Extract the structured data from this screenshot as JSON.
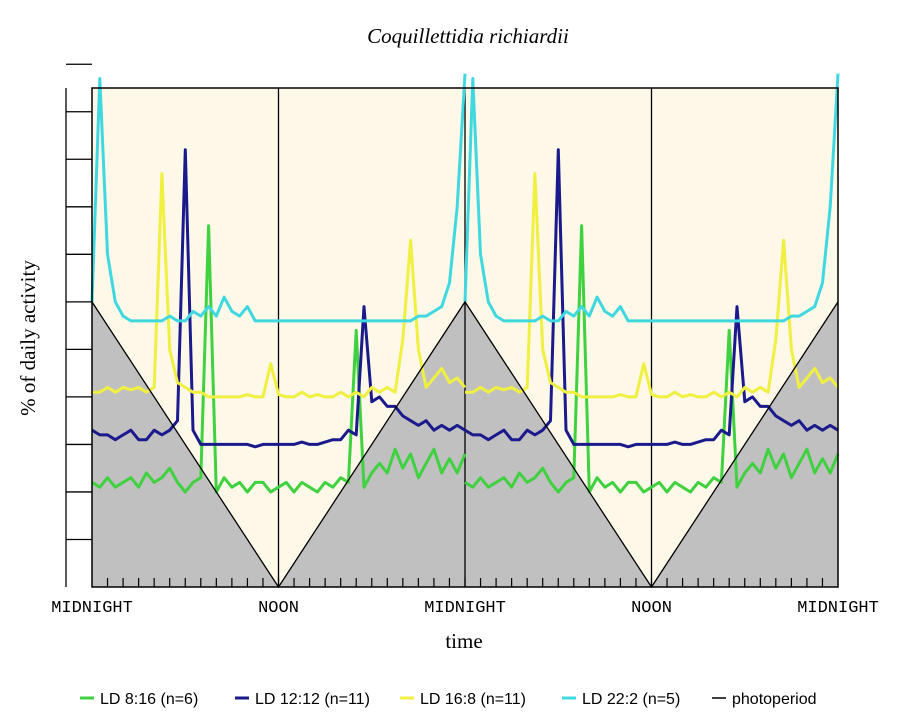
{
  "chart_data": {
    "type": "line",
    "title": "Coquillettidia richiardii",
    "xlabel": "time",
    "ylabel": "% of daily activity",
    "x_ticks": [
      "MIDNIGHT",
      "NOON",
      "MIDNIGHT",
      "NOON",
      "MIDNIGHT"
    ],
    "x_range_hours": [
      0,
      48
    ],
    "y_range": [
      0,
      10.5
    ],
    "y_tick_count": 11,
    "plot_background": "#fdf8e8",
    "dark_background": "#c0c0c0",
    "series": [
      {
        "name": "LD 8:16 (n=6)",
        "color": "#3fd13f",
        "x": [
          0,
          0.5,
          1,
          1.5,
          2,
          2.5,
          3,
          3.5,
          4,
          4.5,
          5,
          5.5,
          6,
          6.5,
          7,
          7.5,
          8,
          8.5,
          9,
          9.5,
          10,
          10.5,
          11,
          11.5,
          12,
          12.5,
          13,
          13.5,
          14,
          14.5,
          15,
          15.5,
          16,
          16.5,
          17,
          17.5,
          18,
          18.5,
          19,
          19.5,
          20,
          20.5,
          21,
          21.5,
          22,
          22.5,
          23,
          23.5,
          24
        ],
        "values": [
          2.2,
          2.1,
          2.3,
          2.1,
          2.2,
          2.3,
          2.1,
          2.4,
          2.2,
          2.3,
          2.5,
          2.2,
          2.0,
          2.2,
          2.3,
          7.6,
          2.0,
          2.3,
          2.1,
          2.2,
          2.0,
          2.2,
          2.2,
          2.0,
          2.1,
          2.2,
          2.0,
          2.2,
          2.1,
          2.0,
          2.2,
          2.1,
          2.3,
          2.2,
          5.4,
          2.1,
          2.4,
          2.6,
          2.4,
          2.9,
          2.5,
          2.8,
          2.3,
          2.6,
          2.9,
          2.4,
          2.7,
          2.4,
          2.8
        ]
      },
      {
        "name": "LD 12:12 (n=11)",
        "color": "#1a1a8c",
        "x": [
          0,
          0.5,
          1,
          1.5,
          2,
          2.5,
          3,
          3.5,
          4,
          4.5,
          5,
          5.5,
          6,
          6.5,
          7,
          7.5,
          8,
          8.5,
          9,
          9.5,
          10,
          10.5,
          11,
          11.5,
          12,
          12.5,
          13,
          13.5,
          14,
          14.5,
          15,
          15.5,
          16,
          16.5,
          17,
          17.5,
          18,
          18.5,
          19,
          19.5,
          20,
          20.5,
          21,
          21.5,
          22,
          22.5,
          23,
          23.5,
          24
        ],
        "values": [
          3.3,
          3.2,
          3.2,
          3.1,
          3.2,
          3.3,
          3.1,
          3.1,
          3.3,
          3.2,
          3.3,
          3.5,
          9.2,
          3.3,
          3.0,
          3.0,
          3.0,
          3.0,
          3.0,
          3.0,
          3.0,
          2.95,
          3.0,
          3.0,
          3.0,
          3.0,
          3.0,
          3.05,
          3.0,
          3.0,
          3.05,
          3.1,
          3.1,
          3.3,
          3.2,
          5.9,
          3.9,
          4.0,
          3.8,
          3.8,
          3.6,
          3.5,
          3.4,
          3.5,
          3.3,
          3.4,
          3.3,
          3.4,
          3.3
        ]
      },
      {
        "name": "LD 16:8 (n=11)",
        "color": "#f0f040",
        "x": [
          0,
          0.5,
          1,
          1.5,
          2,
          2.5,
          3,
          3.5,
          4,
          4.5,
          5,
          5.5,
          6,
          6.5,
          7,
          7.5,
          8,
          8.5,
          9,
          9.5,
          10,
          10.5,
          11,
          11.5,
          12,
          12.5,
          13,
          13.5,
          14,
          14.5,
          15,
          15.5,
          16,
          16.5,
          17,
          17.5,
          18,
          18.5,
          19,
          19.5,
          20,
          20.5,
          21,
          21.5,
          22,
          22.5,
          23,
          23.5,
          24
        ],
        "values": [
          4.1,
          4.1,
          4.2,
          4.1,
          4.2,
          4.15,
          4.2,
          4.1,
          4.2,
          8.7,
          5.0,
          4.3,
          4.2,
          4.1,
          4.1,
          4.0,
          4.0,
          4.0,
          4.0,
          4.0,
          4.05,
          4.0,
          4.0,
          4.7,
          4.05,
          4.0,
          4.0,
          4.1,
          4.0,
          4.05,
          4.0,
          4.0,
          4.1,
          4.0,
          4.1,
          4.0,
          4.2,
          4.1,
          4.2,
          4.1,
          5.2,
          7.3,
          5.0,
          4.2,
          4.4,
          4.6,
          4.3,
          4.4,
          4.2
        ]
      },
      {
        "name": "LD 22:2 (n=5)",
        "color": "#40d8e0",
        "x": [
          0,
          0.5,
          1,
          1.5,
          2,
          2.5,
          3,
          3.5,
          4,
          4.5,
          5,
          5.5,
          6,
          6.5,
          7,
          7.5,
          8,
          8.5,
          9,
          9.5,
          10,
          10.5,
          11,
          11.5,
          12,
          12.5,
          13,
          13.5,
          14,
          14.5,
          15,
          15.5,
          16,
          16.5,
          17,
          17.5,
          18,
          18.5,
          19,
          19.5,
          20,
          20.5,
          21,
          21.5,
          22,
          22.5,
          23,
          23.5,
          24
        ],
        "values": [
          6.0,
          10.7,
          7.0,
          6.0,
          5.7,
          5.6,
          5.6,
          5.6,
          5.6,
          5.6,
          5.7,
          5.6,
          5.6,
          5.8,
          5.7,
          5.9,
          5.7,
          6.1,
          5.8,
          5.7,
          5.9,
          5.6,
          5.6,
          5.6,
          5.6,
          5.6,
          5.6,
          5.6,
          5.6,
          5.6,
          5.6,
          5.6,
          5.6,
          5.6,
          5.6,
          5.6,
          5.6,
          5.6,
          5.6,
          5.6,
          5.6,
          5.6,
          5.7,
          5.7,
          5.8,
          5.9,
          6.4,
          8.0,
          10.8
        ]
      }
    ],
    "photoperiod": {
      "name": "photoperiod",
      "color": "#000000",
      "x": [
        0,
        12,
        24,
        36,
        48
      ],
      "values": [
        6.0,
        0,
        6.0,
        0,
        6.0
      ]
    },
    "legend": {
      "placement": "bottom",
      "entries": [
        "LD 8:16 (n=6)",
        "LD 12:12 (n=11)",
        "LD 16:8 (n=11)",
        "LD 22:2 (n=5)",
        "photoperiod"
      ]
    }
  }
}
